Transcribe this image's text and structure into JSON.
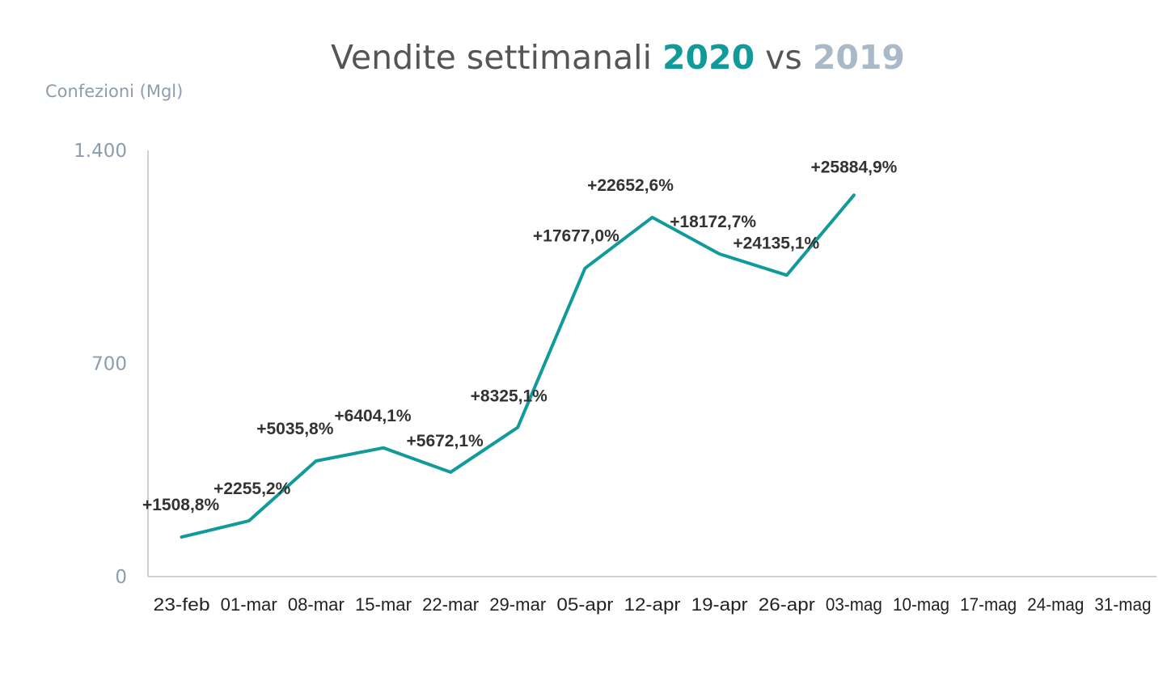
{
  "chart_data": {
    "type": "line",
    "title": {
      "prefix": "Vendite settimanali ",
      "highlight_2020": "2020",
      "middle": " vs ",
      "highlight_2019": "2019"
    },
    "ylabel": "Confezioni (Mgl)",
    "ylim": [
      0,
      1400
    ],
    "yticks": [
      {
        "value": 0,
        "label": "0"
      },
      {
        "value": 700,
        "label": "700"
      },
      {
        "value": 1400,
        "label": "1.400"
      }
    ],
    "categories": [
      "23-feb",
      "01-mar",
      "08-mar",
      "15-mar",
      "22-mar",
      "29-mar",
      "05-apr",
      "12-apr",
      "19-apr",
      "26-apr",
      "03-mag",
      "10-mag",
      "17-mag",
      "24-mag",
      "31-mag"
    ],
    "series": [
      {
        "values": [
          130,
          183,
          380,
          423,
          343,
          490,
          1013,
          1180,
          1060,
          990,
          1253,
          null,
          null,
          null,
          null
        ],
        "color": "#119a9a",
        "data_labels": [
          "+1508,8%",
          "+2255,2%",
          "+5035,8%",
          "+6404,1%",
          "+5672,1%",
          "+8325,1%",
          "+17677,0%",
          "+22652,6%",
          "+18172,7%",
          "+24135,1%",
          "+25884,9%",
          null,
          null,
          null,
          null
        ]
      }
    ],
    "colors": {
      "series_2020": "#119a9a",
      "year_2019": "#a9b9c7"
    },
    "grid": false,
    "legend": "none"
  }
}
